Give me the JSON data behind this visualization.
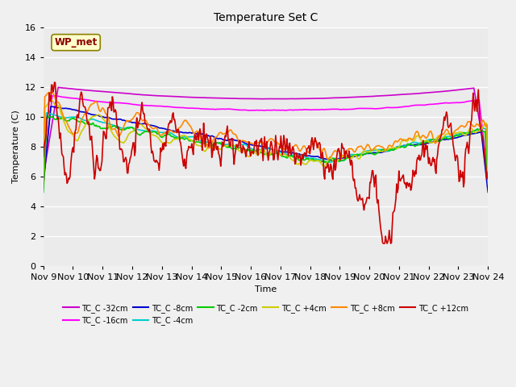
{
  "title": "Temperature Set C",
  "xlabel": "Time",
  "ylabel": "Temperature (C)",
  "ylim": [
    0,
    16
  ],
  "yticks": [
    0,
    2,
    4,
    6,
    8,
    10,
    12,
    14,
    16
  ],
  "fig_bg": "#f0f0f0",
  "plot_bg": "#ebebeb",
  "annotation_text": "WP_met",
  "annotation_color": "#8B0000",
  "annotation_bg": "#ffffcc",
  "xtick_labels": [
    "Nov 9",
    "Nov 10",
    "Nov 11",
    "Nov 12",
    "Nov 13",
    "Nov 14",
    "Nov 15",
    "Nov 16",
    "Nov 17",
    "Nov 18",
    "Nov 19",
    "Nov 20",
    "Nov 21",
    "Nov 22",
    "Nov 23",
    "Nov 24"
  ],
  "series_colors": {
    "TC_C -32cm": "#cc00cc",
    "TC_C -16cm": "#ff00ff",
    "TC_C -8cm": "#0000cc",
    "TC_C -4cm": "#00cccc",
    "TC_C -2cm": "#00cc00",
    "TC_C +4cm": "#cccc00",
    "TC_C +8cm": "#ff8800",
    "TC_C +12cm": "#cc0000"
  }
}
